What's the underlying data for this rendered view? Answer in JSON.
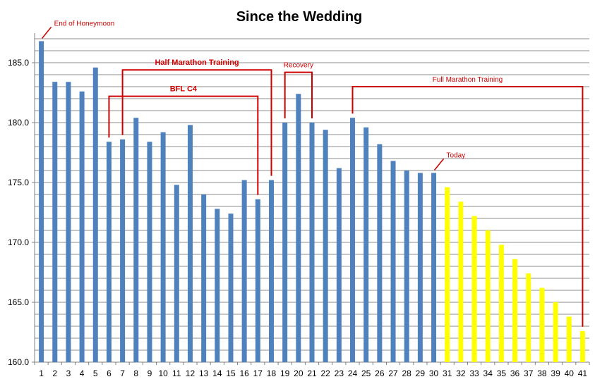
{
  "chart_data": {
    "type": "bar",
    "title": "Since the Wedding",
    "xlabel": "",
    "ylabel": "",
    "ylim": [
      160,
      188
    ],
    "yticks": [
      "160.0",
      "165.0",
      "170.0",
      "175.0",
      "180.0",
      "185.0"
    ],
    "grid": true,
    "legend": "none",
    "categories": [
      "1",
      "2",
      "3",
      "4",
      "5",
      "6",
      "7",
      "8",
      "9",
      "10",
      "11",
      "12",
      "13",
      "14",
      "15",
      "16",
      "17",
      "18",
      "19",
      "20",
      "21",
      "22",
      "23",
      "24",
      "25",
      "26",
      "27",
      "28",
      "29",
      "30",
      "31",
      "32",
      "33",
      "34",
      "35",
      "36",
      "37",
      "38",
      "39",
      "40",
      "41"
    ],
    "values": [
      186.8,
      183.4,
      183.4,
      182.6,
      184.6,
      178.4,
      178.6,
      180.4,
      178.4,
      179.2,
      174.8,
      179.8,
      174.0,
      172.8,
      172.4,
      175.2,
      173.6,
      175.2,
      180.0,
      182.4,
      180.0,
      179.4,
      176.2,
      180.4,
      179.6,
      178.2,
      176.8,
      176.0,
      175.8,
      175.8,
      174.6,
      173.4,
      172.2,
      171.0,
      169.8,
      168.6,
      167.4,
      166.2,
      165.0,
      163.8,
      162.6
    ],
    "colors": {
      "actual": "#4f81bd",
      "projected": "#ffff00",
      "annotation": "#cc0000"
    },
    "projected_from_index": 30,
    "annotations": [
      {
        "text": "End of Honeymoon",
        "type": "callout",
        "x": 1
      },
      {
        "text": "Half Marathon Training",
        "type": "bracket",
        "from": 7,
        "to": 18,
        "level": 184.4
      },
      {
        "text": "BFL C4",
        "type": "bracket",
        "from": 6,
        "to": 17,
        "level": 182.2
      },
      {
        "text": "Recovery",
        "type": "bracket",
        "from": 19,
        "to": 21,
        "level": 184.2
      },
      {
        "text": "Full Marathon Training",
        "type": "bracket",
        "from": 24,
        "to": 41,
        "level": 183.0
      },
      {
        "text": "Today",
        "type": "callout",
        "x": 30
      }
    ]
  }
}
